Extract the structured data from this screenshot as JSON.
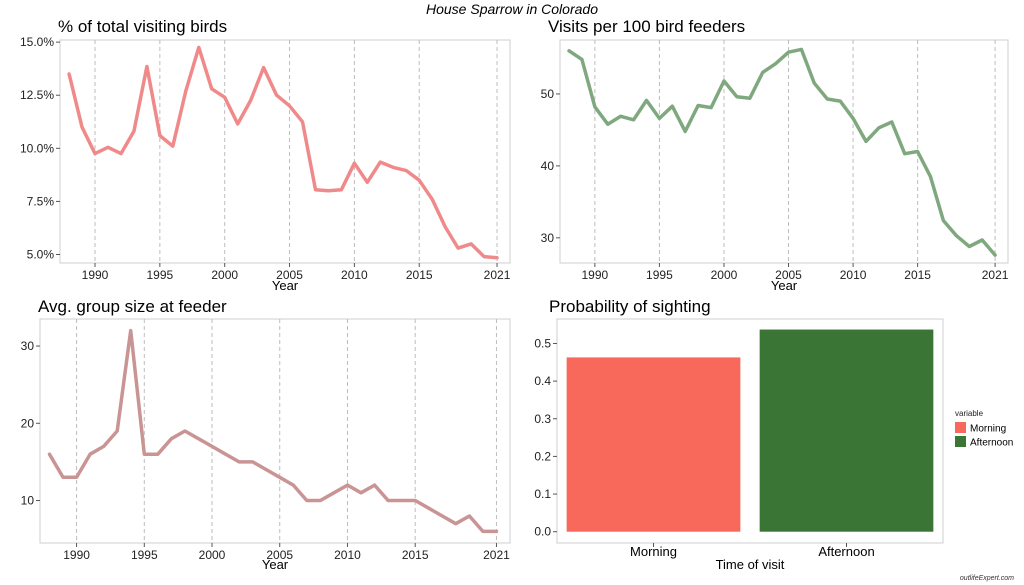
{
  "suptitle": "House Sparrow in Colorado",
  "credit": "outlifeExpert.com",
  "colors": {
    "pct_line": "#f08a8a",
    "visits_line": "#7fa87f",
    "group_line": "#c99494",
    "morning": "#f8695b",
    "afternoon": "#3a7535",
    "gridline": "#bdbdbd"
  },
  "chart_data": [
    {
      "type": "line",
      "title": "% of total visiting birds",
      "xlabel": "Year",
      "ylabel": "",
      "x_ticks": [
        1990,
        1995,
        2000,
        2005,
        2010,
        2015,
        2021
      ],
      "y_ticks": [
        5,
        7.5,
        10,
        12.5,
        15
      ],
      "y_tick_labels": [
        "5.0%",
        "7.5%",
        "10.0%",
        "12.5%",
        "15.0%"
      ],
      "xlim": [
        1987.3,
        2022.0
      ],
      "ylim": [
        4.6,
        15.1
      ],
      "grid": "vertical dashed at x ticks",
      "color": "#f08a8a",
      "x": [
        1988,
        1989,
        1990,
        1991,
        1992,
        1993,
        1994,
        1995,
        1996,
        1997,
        1998,
        1999,
        2000,
        2001,
        2002,
        2003,
        2004,
        2005,
        2006,
        2007,
        2008,
        2009,
        2010,
        2011,
        2012,
        2013,
        2014,
        2015,
        2016,
        2017,
        2018,
        2019,
        2020,
        2021
      ],
      "y": [
        13.5,
        11.0,
        9.75,
        10.05,
        9.75,
        10.8,
        13.85,
        10.6,
        10.1,
        12.7,
        14.75,
        12.8,
        12.4,
        11.15,
        12.25,
        13.8,
        12.5,
        12.0,
        11.25,
        8.05,
        8.0,
        8.05,
        9.3,
        8.4,
        9.35,
        9.1,
        8.95,
        8.5,
        7.6,
        6.3,
        5.3,
        5.5,
        4.9,
        4.85
      ]
    },
    {
      "type": "line",
      "title": "Visits per 100 bird feeders",
      "xlabel": "Year",
      "ylabel": "",
      "x_ticks": [
        1990,
        1995,
        2000,
        2005,
        2010,
        2015,
        2021
      ],
      "y_ticks": [
        30,
        40,
        50
      ],
      "y_tick_labels": [
        "30",
        "40",
        "50"
      ],
      "xlim": [
        1987.3,
        2022.0
      ],
      "ylim": [
        26.5,
        57.5
      ],
      "grid": "vertical dashed at x ticks",
      "color": "#7fa87f",
      "x": [
        1988,
        1989,
        1990,
        1991,
        1992,
        1993,
        1994,
        1995,
        1996,
        1997,
        1998,
        1999,
        2000,
        2001,
        2002,
        2003,
        2004,
        2005,
        2006,
        2007,
        2008,
        2009,
        2010,
        2011,
        2012,
        2013,
        2014,
        2015,
        2016,
        2017,
        2018,
        2019,
        2020,
        2021
      ],
      "y": [
        56.0,
        54.8,
        48.2,
        45.8,
        46.9,
        46.4,
        49.1,
        46.6,
        48.3,
        44.8,
        48.4,
        48.1,
        51.8,
        49.6,
        49.4,
        53.0,
        54.2,
        55.8,
        56.2,
        51.5,
        49.3,
        49.0,
        46.6,
        43.4,
        45.3,
        46.1,
        41.7,
        42.0,
        38.5,
        32.4,
        30.3,
        28.8,
        29.7,
        27.6
      ]
    },
    {
      "type": "line",
      "title": "Avg. group size at feeder",
      "xlabel": "Year",
      "ylabel": "",
      "x_ticks": [
        1990,
        1995,
        2000,
        2005,
        2010,
        2015,
        2021
      ],
      "y_ticks": [
        10,
        20,
        30
      ],
      "y_tick_labels": [
        "10",
        "20",
        "30"
      ],
      "xlim": [
        1987.3,
        2022.0
      ],
      "ylim": [
        4.5,
        33.5
      ],
      "grid": "vertical dashed at x ticks",
      "color": "#c99494",
      "x": [
        1988,
        1989,
        1990,
        1991,
        1992,
        1993,
        1994,
        1995,
        1996,
        1997,
        1998,
        1999,
        2000,
        2001,
        2002,
        2003,
        2004,
        2005,
        2006,
        2007,
        2008,
        2009,
        2010,
        2011,
        2012,
        2013,
        2014,
        2015,
        2016,
        2017,
        2018,
        2019,
        2020,
        2021
      ],
      "y": [
        16,
        13,
        13,
        16,
        17,
        19,
        32,
        16,
        16,
        18,
        19,
        18,
        17,
        16,
        15,
        15,
        14,
        13,
        12,
        10,
        10,
        11,
        12,
        11,
        12,
        10,
        10,
        10,
        9,
        8,
        7,
        8,
        6,
        6
      ]
    },
    {
      "type": "bar",
      "title": "Probability of sighting",
      "xlabel": "Time of visit",
      "ylabel": "",
      "categories": [
        "Morning",
        "Afternoon"
      ],
      "values": [
        0.463,
        0.537
      ],
      "colors": [
        "#f8695b",
        "#3a7535"
      ],
      "y_ticks": [
        0,
        0.1,
        0.2,
        0.3,
        0.4,
        0.5
      ],
      "y_tick_labels": [
        "0.0",
        "0.1",
        "0.2",
        "0.3",
        "0.4",
        "0.5"
      ],
      "ylim": [
        -0.03,
        0.565
      ],
      "grid": "none",
      "legend": {
        "title": "variable",
        "entries": [
          "Morning",
          "Afternoon"
        ],
        "placement": "right"
      }
    }
  ]
}
